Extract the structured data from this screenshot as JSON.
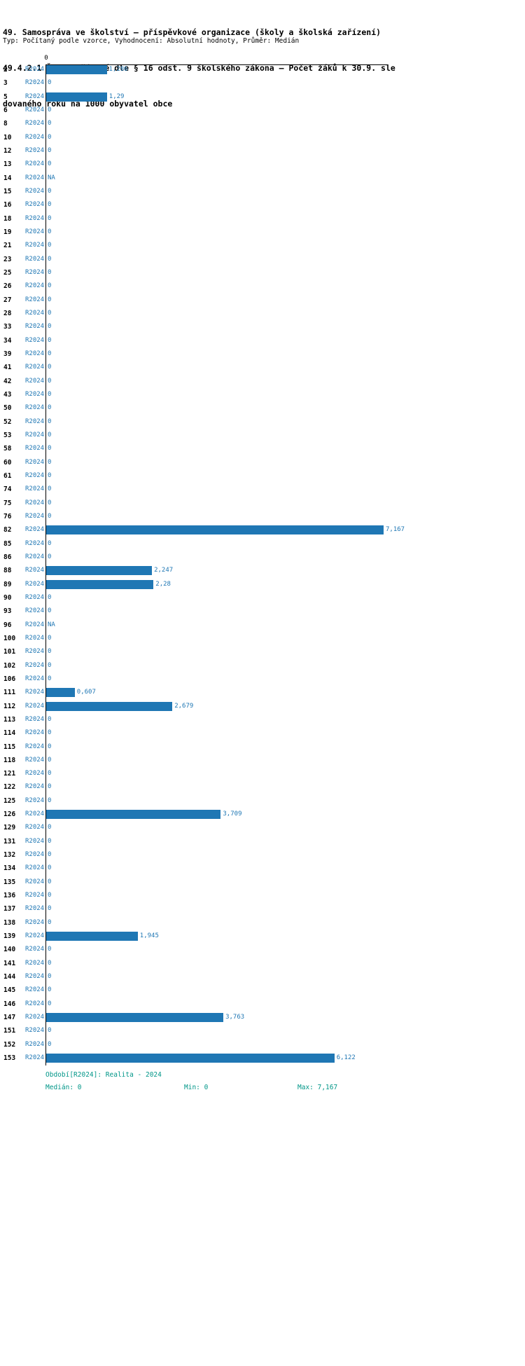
{
  "header": {
    "title_lines": [
      "49. Samospráva ve školství – příspěvkové organizace (školy a školská zařízení)",
      "49.4.2.1 Školy zřízené dle § 16 odst. 9 školského zákona – Počet žáků k 30.9. sle",
      "dovaného roku na 1000 obyvatel obce"
    ],
    "subtitle": "Typ: Počítaný podle vzorce, Vyhodnocení: Absolutní hodnoty, Průměr: Medián"
  },
  "chart_data": {
    "type": "bar",
    "orientation": "horizontal",
    "series": "R2024",
    "x_tick_top": "0",
    "xlim": [
      0,
      7.167
    ],
    "xmax": 7.167,
    "title": "49.4.2.1 Školy zřízené dle § 16 odst. 9 školského zákona – Počet žáků k 30.9. sledovaného roku na 1000 obyvatel obce",
    "rows": [
      {
        "id": "2",
        "value": 1.286,
        "display": "1,286"
      },
      {
        "id": "3",
        "value": 0,
        "display": "0"
      },
      {
        "id": "5",
        "value": 1.29,
        "display": "1,29"
      },
      {
        "id": "6",
        "value": 0,
        "display": "0"
      },
      {
        "id": "8",
        "value": 0,
        "display": "0"
      },
      {
        "id": "10",
        "value": 0,
        "display": "0"
      },
      {
        "id": "12",
        "value": 0,
        "display": "0"
      },
      {
        "id": "13",
        "value": 0,
        "display": "0"
      },
      {
        "id": "14",
        "value": null,
        "display": "NA"
      },
      {
        "id": "15",
        "value": 0,
        "display": "0"
      },
      {
        "id": "16",
        "value": 0,
        "display": "0"
      },
      {
        "id": "18",
        "value": 0,
        "display": "0"
      },
      {
        "id": "19",
        "value": 0,
        "display": "0"
      },
      {
        "id": "21",
        "value": 0,
        "display": "0"
      },
      {
        "id": "23",
        "value": 0,
        "display": "0"
      },
      {
        "id": "25",
        "value": 0,
        "display": "0"
      },
      {
        "id": "26",
        "value": 0,
        "display": "0"
      },
      {
        "id": "27",
        "value": 0,
        "display": "0"
      },
      {
        "id": "28",
        "value": 0,
        "display": "0"
      },
      {
        "id": "33",
        "value": 0,
        "display": "0"
      },
      {
        "id": "34",
        "value": 0,
        "display": "0"
      },
      {
        "id": "39",
        "value": 0,
        "display": "0"
      },
      {
        "id": "41",
        "value": 0,
        "display": "0"
      },
      {
        "id": "42",
        "value": 0,
        "display": "0"
      },
      {
        "id": "43",
        "value": 0,
        "display": "0"
      },
      {
        "id": "50",
        "value": 0,
        "display": "0"
      },
      {
        "id": "52",
        "value": 0,
        "display": "0"
      },
      {
        "id": "53",
        "value": 0,
        "display": "0"
      },
      {
        "id": "58",
        "value": 0,
        "display": "0"
      },
      {
        "id": "60",
        "value": 0,
        "display": "0"
      },
      {
        "id": "61",
        "value": 0,
        "display": "0"
      },
      {
        "id": "74",
        "value": 0,
        "display": "0"
      },
      {
        "id": "75",
        "value": 0,
        "display": "0"
      },
      {
        "id": "76",
        "value": 0,
        "display": "0"
      },
      {
        "id": "82",
        "value": 7.167,
        "display": "7,167"
      },
      {
        "id": "85",
        "value": 0,
        "display": "0"
      },
      {
        "id": "86",
        "value": 0,
        "display": "0"
      },
      {
        "id": "88",
        "value": 2.247,
        "display": "2,247"
      },
      {
        "id": "89",
        "value": 2.28,
        "display": "2,28"
      },
      {
        "id": "90",
        "value": 0,
        "display": "0"
      },
      {
        "id": "93",
        "value": 0,
        "display": "0"
      },
      {
        "id": "96",
        "value": null,
        "display": "NA"
      },
      {
        "id": "100",
        "value": 0,
        "display": "0"
      },
      {
        "id": "101",
        "value": 0,
        "display": "0"
      },
      {
        "id": "102",
        "value": 0,
        "display": "0"
      },
      {
        "id": "106",
        "value": 0,
        "display": "0"
      },
      {
        "id": "111",
        "value": 0.607,
        "display": "0,607"
      },
      {
        "id": "112",
        "value": 2.679,
        "display": "2,679"
      },
      {
        "id": "113",
        "value": 0,
        "display": "0"
      },
      {
        "id": "114",
        "value": 0,
        "display": "0"
      },
      {
        "id": "115",
        "value": 0,
        "display": "0"
      },
      {
        "id": "118",
        "value": 0,
        "display": "0"
      },
      {
        "id": "121",
        "value": 0,
        "display": "0"
      },
      {
        "id": "122",
        "value": 0,
        "display": "0"
      },
      {
        "id": "125",
        "value": 0,
        "display": "0"
      },
      {
        "id": "126",
        "value": 3.709,
        "display": "3,709"
      },
      {
        "id": "129",
        "value": 0,
        "display": "0"
      },
      {
        "id": "131",
        "value": 0,
        "display": "0"
      },
      {
        "id": "132",
        "value": 0,
        "display": "0"
      },
      {
        "id": "134",
        "value": 0,
        "display": "0"
      },
      {
        "id": "135",
        "value": 0,
        "display": "0"
      },
      {
        "id": "136",
        "value": 0,
        "display": "0"
      },
      {
        "id": "137",
        "value": 0,
        "display": "0"
      },
      {
        "id": "138",
        "value": 0,
        "display": "0"
      },
      {
        "id": "139",
        "value": 1.945,
        "display": "1,945"
      },
      {
        "id": "140",
        "value": 0,
        "display": "0"
      },
      {
        "id": "141",
        "value": 0,
        "display": "0"
      },
      {
        "id": "144",
        "value": 0,
        "display": "0"
      },
      {
        "id": "145",
        "value": 0,
        "display": "0"
      },
      {
        "id": "146",
        "value": 0,
        "display": "0"
      },
      {
        "id": "147",
        "value": 3.763,
        "display": "3,763"
      },
      {
        "id": "151",
        "value": 0,
        "display": "0"
      },
      {
        "id": "152",
        "value": 0,
        "display": "0"
      },
      {
        "id": "153",
        "value": 6.122,
        "display": "6,122"
      }
    ]
  },
  "footer": {
    "period": "Období[R2024]: Realita - 2024",
    "median": "Medián: 0",
    "min": "Min: 0",
    "max": "Max: 7,167"
  },
  "colors": {
    "bar": "#1f77b4",
    "accent": "#1f77b4",
    "footer": "#009688",
    "axis": "#000000"
  }
}
